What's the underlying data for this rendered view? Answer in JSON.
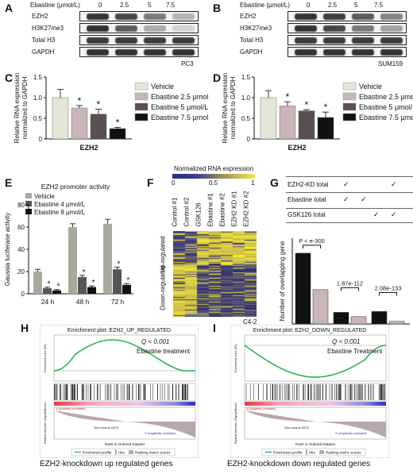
{
  "panels": {
    "A": {
      "letter": "A",
      "ebastine_label": "Ebastine (μmol/L)",
      "doses": [
        "0",
        "2.5",
        "5",
        "7.5"
      ],
      "rows": [
        "EZH2",
        "H3K27me3",
        "Total H3",
        "GAPDH"
      ],
      "cell_line": "PC3"
    },
    "B": {
      "letter": "B",
      "ebastine_label": "Ebastine (μmol/L)",
      "doses": [
        "0",
        "2.5",
        "5",
        "7.5"
      ],
      "rows": [
        "EZH2",
        "H3K27me3",
        "Total H3",
        "GAPDH"
      ],
      "cell_line": "SUM159"
    },
    "C": {
      "letter": "C"
    },
    "D": {
      "letter": "D"
    },
    "E": {
      "letter": "E"
    },
    "F": {
      "letter": "F",
      "scale_title": "Normalized RNA expression",
      "scale_ticks": [
        "0",
        "0.5",
        "1"
      ],
      "columns": [
        "Control #1",
        "Control #2",
        "GSK126",
        "Ebastine #1",
        "Ebastine #2",
        "EZH2 KD #1",
        "EZH2 KD #2"
      ],
      "row_up": "Up-regulated",
      "row_down": "Down-regulated",
      "cell_line": "C4-2"
    },
    "G": {
      "letter": "G",
      "rows": [
        "EZH2-KD total",
        "Ebastine total",
        "GSK126 total"
      ],
      "check": "✓",
      "ylabel": "Number of overlapping gene",
      "pvals": [
        "P < e-300",
        "1.87e-112",
        "2.08e-133"
      ]
    },
    "H": {
      "letter": "H",
      "plot_title": "Enrichment plot: EZH2_UP_REGULATED",
      "q": "Q < 0.001",
      "treatment": "Ebastine treatment",
      "caption": "EZH2-knockdown up regulated genes",
      "legend": [
        "Enrichment profile",
        "Hits",
        "Ranking metric scores"
      ],
      "xlab": "Rank in Ordered Dataset",
      "ylab_es": "Enrichment score (ES)",
      "ylab_rank": "Ranked list metric (Signal2Noise)",
      "pos": "'a' (positively correlated)",
      "neg": "'b' (negatively correlated)",
      "zero": "Zero cross at 13274"
    },
    "I": {
      "letter": "I",
      "plot_title": "Enrichment plot: EZH2_DOWN_REGULATED",
      "q": "Q < 0.001",
      "treatment": "Ebastine Treatment",
      "caption": "EZH2-knockdown down regulated genes",
      "legend": [
        "Enrichment profile",
        "Hits",
        "Ranking metric scores"
      ],
      "xlab": "Rank in Ordered Dataset",
      "ylab_es": "Enrichment score (ES)",
      "ylab_rank": "Ranked list metric (Signal2Noise)",
      "pos": "'a' (positively correlated)",
      "neg": "'b' (negatively correlated)",
      "zero": "Zero cross at 13274"
    }
  },
  "chart_data": [
    {
      "id": "C",
      "type": "bar",
      "categories": [
        "EZH2"
      ],
      "xlabel": "EZH2",
      "ylabel": "Relative RNA expression normalized to GAPDH",
      "ylim": [
        0,
        1.5
      ],
      "yticks": [
        "0",
        "0.5",
        "1.0",
        "1.5"
      ],
      "series": [
        {
          "name": "Vehicle",
          "values": [
            1.0
          ],
          "err": [
            0.2
          ],
          "color": "#e4e6d6",
          "sig": ""
        },
        {
          "name": "Ebastine 2.5 μmol/L",
          "values": [
            0.75
          ],
          "err": [
            0.06
          ],
          "color": "#c9b4b6",
          "sig": "*"
        },
        {
          "name": "Ebastine 5 μmol/L",
          "values": [
            0.6
          ],
          "err": [
            0.12
          ],
          "color": "#5a4f52",
          "sig": "*"
        },
        {
          "name": "Ebastine 7.5 μmol/L",
          "values": [
            0.25
          ],
          "err": [
            0.03
          ],
          "color": "#111111",
          "sig": "*"
        }
      ]
    },
    {
      "id": "D",
      "type": "bar",
      "categories": [
        "EZH2"
      ],
      "xlabel": "EZH2",
      "ylabel": "Relative RNA expression normalized to GAPDH",
      "ylim": [
        0,
        1.5
      ],
      "yticks": [
        "0",
        "0.5",
        "1.0",
        "1.5"
      ],
      "series": [
        {
          "name": "Vehicle",
          "values": [
            1.0
          ],
          "err": [
            0.17
          ],
          "color": "#e4e6d6",
          "sig": ""
        },
        {
          "name": "Ebastine 2.5 μmol/L",
          "values": [
            0.8
          ],
          "err": [
            0.1
          ],
          "color": "#c9b4b6",
          "sig": "*"
        },
        {
          "name": "Ebastine 5 μmol/L",
          "values": [
            0.68
          ],
          "err": [
            0.03
          ],
          "color": "#5a4f52",
          "sig": "*"
        },
        {
          "name": "Ebastine 7.5 μmol/L",
          "values": [
            0.52
          ],
          "err": [
            0.13
          ],
          "color": "#111111",
          "sig": "*"
        }
      ]
    },
    {
      "id": "E",
      "type": "bar",
      "title": "EZH2 promoter activity",
      "categories": [
        "24 h",
        "48 h",
        "72 h"
      ],
      "ylabel": "Gaussia luciferase activity",
      "ylim": [
        0,
        80
      ],
      "yticks": [
        "0",
        "20",
        "40",
        "60",
        "80"
      ],
      "series": [
        {
          "name": "Vehicle",
          "values": [
            20,
            60,
            63
          ],
          "err": [
            2,
            3,
            4
          ],
          "color": "#a9a99c",
          "sig": ""
        },
        {
          "name": "Ebastine 4 μmol/L",
          "values": [
            5,
            15,
            22
          ],
          "err": [
            1,
            1.5,
            2
          ],
          "color": "#55555a",
          "sig": "*"
        },
        {
          "name": "Ebastine 8 μmol/L",
          "values": [
            3,
            6,
            8
          ],
          "err": [
            0.8,
            1,
            1.2
          ],
          "color": "#111111",
          "sig": "*"
        }
      ]
    },
    {
      "id": "G",
      "type": "bar",
      "ylabel": "Number of overlapping gene",
      "values": [
        1650,
        800,
        270,
        170,
        290,
        60
      ],
      "colors": [
        "#111111",
        "#c9b4b6",
        "#111111",
        "#c9b4b6",
        "#111111",
        "#c9b4b6"
      ]
    }
  ]
}
